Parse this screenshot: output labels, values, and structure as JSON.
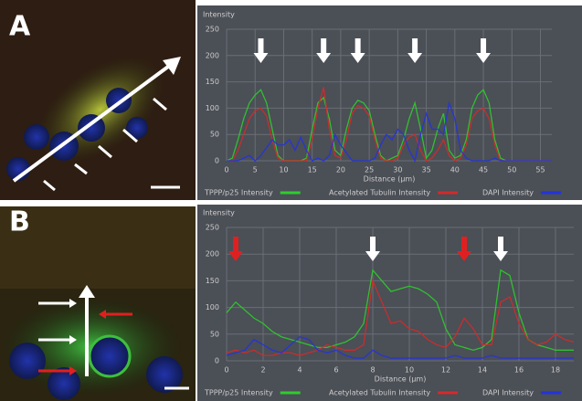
{
  "chart_data": [
    {
      "type": "line",
      "panel": "A",
      "y_label": "Intensity",
      "x_label": "Distance (µm)",
      "xlim": [
        0,
        57
      ],
      "ylim": [
        0,
        250
      ],
      "xticks": [
        0,
        5,
        10,
        15,
        20,
        25,
        30,
        35,
        40,
        45,
        50,
        55
      ],
      "yticks": [
        0,
        50,
        100,
        150,
        200,
        250
      ],
      "grid": true,
      "x": [
        0,
        1,
        2,
        3,
        4,
        5,
        6,
        7,
        8,
        9,
        10,
        11,
        12,
        13,
        14,
        15,
        16,
        17,
        18,
        19,
        20,
        21,
        22,
        23,
        24,
        25,
        26,
        27,
        28,
        29,
        30,
        31,
        32,
        33,
        34,
        35,
        36,
        37,
        38,
        39,
        40,
        41,
        42,
        43,
        44,
        45,
        46,
        47,
        48,
        49,
        50,
        51,
        52,
        53,
        54,
        55,
        56,
        57
      ],
      "series": [
        {
          "name": "TPPP/p25 Intensity",
          "color": "#2ecc2e",
          "values": [
            0,
            5,
            40,
            80,
            110,
            125,
            135,
            110,
            60,
            10,
            0,
            0,
            0,
            0,
            5,
            60,
            110,
            120,
            80,
            20,
            10,
            60,
            100,
            115,
            110,
            95,
            50,
            10,
            0,
            5,
            10,
            40,
            80,
            110,
            60,
            5,
            20,
            60,
            90,
            20,
            5,
            10,
            40,
            100,
            125,
            135,
            110,
            40,
            5,
            0,
            0,
            0,
            0,
            0,
            0,
            0,
            0,
            0
          ]
        },
        {
          "name": "Acetylated Tubulin Intensity",
          "color": "#d42a2a",
          "values": [
            0,
            0,
            20,
            50,
            80,
            95,
            100,
            85,
            40,
            5,
            0,
            0,
            0,
            0,
            0,
            40,
            100,
            140,
            60,
            10,
            5,
            40,
            90,
            105,
            100,
            85,
            40,
            5,
            0,
            0,
            5,
            30,
            45,
            50,
            20,
            0,
            5,
            20,
            40,
            10,
            0,
            5,
            30,
            80,
            95,
            100,
            80,
            30,
            0,
            0,
            0,
            0,
            0,
            0,
            0,
            0,
            0,
            0
          ]
        },
        {
          "name": "DAPI Intensity",
          "color": "#2233dd",
          "values": [
            0,
            0,
            0,
            5,
            10,
            0,
            10,
            25,
            40,
            30,
            30,
            40,
            20,
            45,
            20,
            0,
            5,
            0,
            10,
            50,
            30,
            15,
            0,
            0,
            0,
            0,
            5,
            30,
            50,
            40,
            60,
            50,
            20,
            0,
            50,
            90,
            60,
            60,
            50,
            110,
            80,
            20,
            5,
            0,
            0,
            0,
            0,
            5,
            0,
            0,
            0,
            0,
            0,
            0,
            0,
            0,
            0,
            0
          ]
        }
      ],
      "markers": [
        {
          "x": 6,
          "color": "#ffffff"
        },
        {
          "x": 17,
          "color": "#ffffff"
        },
        {
          "x": 23,
          "color": "#ffffff"
        },
        {
          "x": 33,
          "color": "#ffffff"
        },
        {
          "x": 45,
          "color": "#ffffff"
        }
      ]
    },
    {
      "type": "line",
      "panel": "B",
      "y_label": "Intensity",
      "x_label": "Distance (µm)",
      "xlim": [
        0,
        19
      ],
      "ylim": [
        0,
        250
      ],
      "xticks": [
        0,
        2,
        4,
        6,
        8,
        10,
        12,
        14,
        16,
        18
      ],
      "yticks": [
        0,
        50,
        100,
        150,
        200,
        250
      ],
      "grid": true,
      "x": [
        0,
        0.5,
        1,
        1.5,
        2,
        2.5,
        3,
        3.5,
        4,
        4.5,
        5,
        5.5,
        6,
        6.5,
        7,
        7.5,
        8,
        8.5,
        9,
        9.5,
        10,
        10.5,
        11,
        11.5,
        12,
        12.5,
        13,
        13.5,
        14,
        14.5,
        15,
        15.5,
        16,
        16.5,
        17,
        17.5,
        18,
        18.5,
        19
      ],
      "series": [
        {
          "name": "TPPP/p25 Intensity",
          "color": "#2ecc2e",
          "values": [
            90,
            110,
            95,
            80,
            70,
            55,
            45,
            40,
            35,
            30,
            25,
            25,
            30,
            35,
            45,
            70,
            170,
            150,
            130,
            135,
            140,
            135,
            125,
            110,
            60,
            30,
            25,
            20,
            25,
            40,
            170,
            160,
            90,
            40,
            30,
            25,
            20,
            20,
            20
          ]
        },
        {
          "name": "Acetylated Tubulin Intensity",
          "color": "#d42a2a",
          "values": [
            15,
            20,
            15,
            20,
            10,
            10,
            15,
            15,
            10,
            15,
            20,
            30,
            25,
            20,
            20,
            30,
            150,
            110,
            70,
            75,
            60,
            55,
            40,
            30,
            25,
            45,
            80,
            60,
            30,
            30,
            110,
            120,
            70,
            40,
            30,
            35,
            50,
            40,
            35
          ]
        },
        {
          "name": "DAPI Intensity",
          "color": "#2233dd",
          "values": [
            10,
            15,
            20,
            40,
            30,
            20,
            15,
            30,
            45,
            40,
            20,
            15,
            20,
            10,
            5,
            5,
            20,
            10,
            5,
            5,
            5,
            5,
            5,
            5,
            5,
            10,
            5,
            5,
            5,
            10,
            5,
            5,
            5,
            5,
            5,
            5,
            5,
            5,
            5
          ]
        }
      ],
      "markers": [
        {
          "x": 0.5,
          "color": "#e02020"
        },
        {
          "x": 8,
          "color": "#ffffff"
        },
        {
          "x": 13,
          "color": "#e02020"
        },
        {
          "x": 15,
          "color": "#ffffff"
        }
      ]
    }
  ]
}
